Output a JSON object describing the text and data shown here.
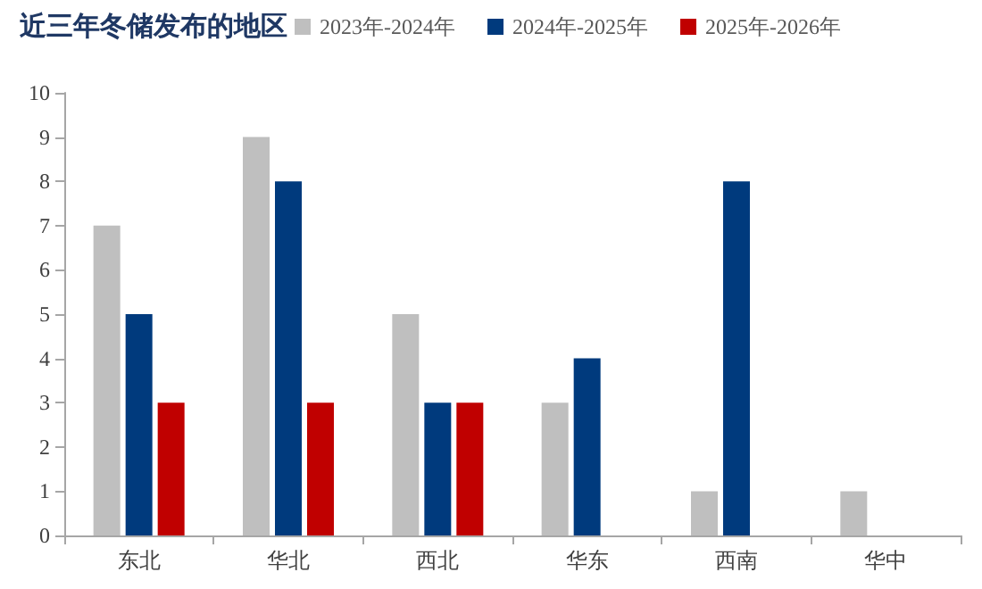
{
  "chart_data": {
    "type": "bar",
    "title": "近三年冬储发布的地区",
    "categories": [
      "东北",
      "华北",
      "西北",
      "华东",
      "西南",
      "华中"
    ],
    "series": [
      {
        "name": "2023年-2024年",
        "color": "#bfbfbf",
        "values": [
          7,
          9,
          5,
          3,
          1,
          1
        ]
      },
      {
        "name": "2024年-2025年",
        "color": "#003a7d",
        "values": [
          5,
          8,
          3,
          4,
          8,
          null
        ]
      },
      {
        "name": "2025年-2026年",
        "color": "#c00000",
        "values": [
          3,
          3,
          3,
          null,
          null,
          null
        ]
      }
    ],
    "ylim": [
      0,
      10
    ],
    "yticks": [
      0,
      1,
      2,
      3,
      4,
      5,
      6,
      7,
      8,
      9,
      10
    ],
    "grid": false,
    "legend": "top"
  }
}
